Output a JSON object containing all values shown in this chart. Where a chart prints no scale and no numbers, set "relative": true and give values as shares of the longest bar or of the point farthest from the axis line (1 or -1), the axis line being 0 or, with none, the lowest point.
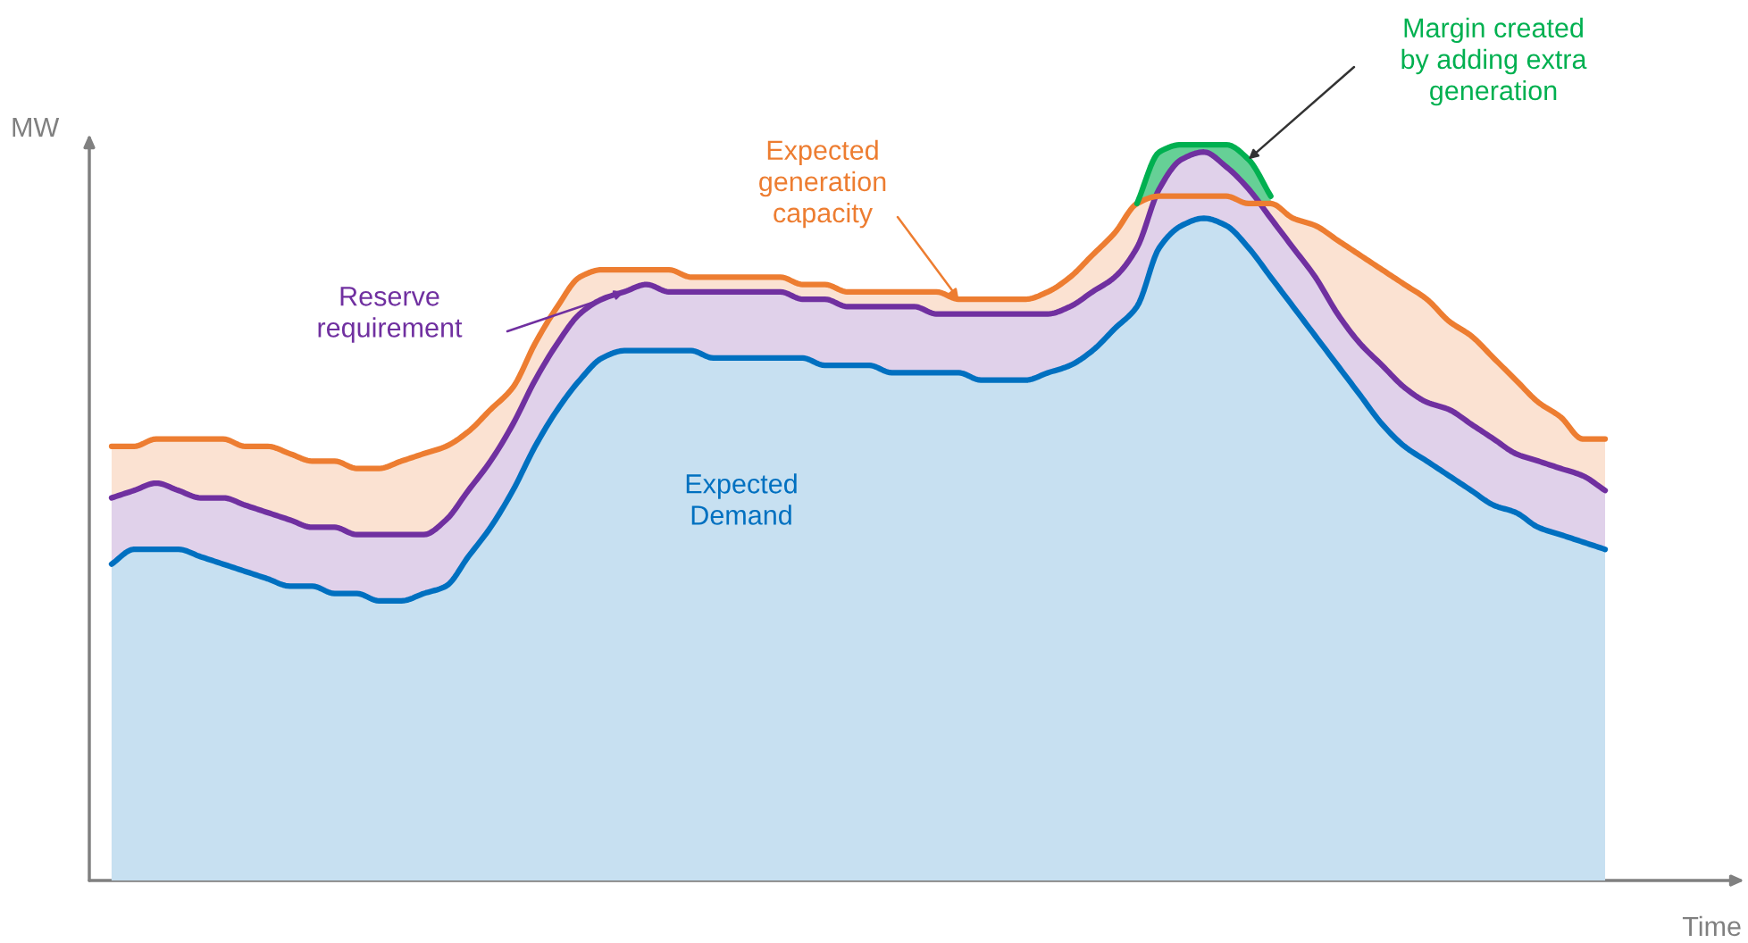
{
  "chart_data": {
    "type": "area",
    "relative": true,
    "xlabel": "Time",
    "ylabel": "MW",
    "categories": [
      null,
      null,
      null,
      null,
      null,
      null,
      null,
      null,
      null,
      null,
      null,
      null,
      null,
      null,
      null,
      null,
      null,
      null,
      null,
      null,
      null,
      null,
      null,
      null,
      null,
      null,
      null,
      null,
      null,
      null,
      null,
      null,
      null,
      null,
      null,
      null,
      null,
      null,
      null,
      null,
      null,
      null,
      null,
      null,
      null,
      null,
      null,
      null,
      null,
      null,
      null,
      null,
      null,
      null,
      null,
      null,
      null,
      null,
      null,
      null,
      null,
      null,
      null,
      null,
      null,
      null,
      null,
      null
    ],
    "series": [
      {
        "name": "Expected\nDemand",
        "color": "#0070c0",
        "values": [
          0.43,
          0.45,
          0.45,
          0.45,
          0.44,
          0.43,
          0.42,
          0.41,
          0.4,
          0.4,
          0.39,
          0.39,
          0.38,
          0.38,
          0.39,
          0.4,
          0.44,
          0.48,
          0.53,
          0.59,
          0.64,
          0.68,
          0.71,
          0.72,
          0.72,
          0.72,
          0.72,
          0.71,
          0.71,
          0.71,
          0.71,
          0.71,
          0.7,
          0.7,
          0.7,
          0.69,
          0.69,
          0.69,
          0.69,
          0.68,
          0.68,
          0.68,
          0.69,
          0.7,
          0.72,
          0.75,
          0.78,
          0.86,
          0.89,
          0.9,
          0.89,
          0.86,
          0.82,
          0.78,
          0.74,
          0.7,
          0.66,
          0.62,
          0.59,
          0.57,
          0.55,
          0.53,
          0.51,
          0.5,
          0.48,
          0.47,
          0.46,
          0.45
        ]
      },
      {
        "name": "Reserve\nrequirement",
        "color": "#7030a0",
        "values": [
          0.52,
          0.53,
          0.54,
          0.53,
          0.52,
          0.52,
          0.51,
          0.5,
          0.49,
          0.48,
          0.48,
          0.47,
          0.47,
          0.47,
          0.47,
          0.49,
          0.53,
          0.57,
          0.62,
          0.68,
          0.73,
          0.77,
          0.79,
          0.8,
          0.81,
          0.8,
          0.8,
          0.8,
          0.8,
          0.8,
          0.8,
          0.79,
          0.79,
          0.78,
          0.78,
          0.78,
          0.78,
          0.77,
          0.77,
          0.77,
          0.77,
          0.77,
          0.77,
          0.78,
          0.8,
          0.82,
          0.86,
          0.94,
          0.98,
          0.99,
          0.97,
          0.94,
          0.9,
          0.86,
          0.82,
          0.77,
          0.73,
          0.7,
          0.67,
          0.65,
          0.64,
          0.62,
          0.6,
          0.58,
          0.57,
          0.56,
          0.55,
          0.53
        ]
      },
      {
        "name": "Expected\ngeneration\ncapacity",
        "color": "#ed7d31",
        "values": [
          0.59,
          0.59,
          0.6,
          0.6,
          0.6,
          0.6,
          0.59,
          0.59,
          0.58,
          0.57,
          0.57,
          0.56,
          0.56,
          0.57,
          0.58,
          0.59,
          0.61,
          0.64,
          0.67,
          0.73,
          0.78,
          0.82,
          0.83,
          0.83,
          0.83,
          0.83,
          0.82,
          0.82,
          0.82,
          0.82,
          0.82,
          0.81,
          0.81,
          0.8,
          0.8,
          0.8,
          0.8,
          0.8,
          0.79,
          0.79,
          0.79,
          0.79,
          0.8,
          0.82,
          0.85,
          0.88,
          0.92,
          0.93,
          0.93,
          0.93,
          0.93,
          0.92,
          0.92,
          0.9,
          0.89,
          0.87,
          0.85,
          0.83,
          0.81,
          0.79,
          0.76,
          0.74,
          0.71,
          0.68,
          0.65,
          0.63,
          0.6,
          0.6
        ]
      },
      {
        "name": "Margin created\nby adding extra\ngeneration",
        "color": "#00b050",
        "values": [
          null,
          null,
          null,
          null,
          null,
          null,
          null,
          null,
          null,
          null,
          null,
          null,
          null,
          null,
          null,
          null,
          null,
          null,
          null,
          null,
          null,
          null,
          null,
          null,
          null,
          null,
          null,
          null,
          null,
          null,
          null,
          null,
          null,
          null,
          null,
          null,
          null,
          null,
          null,
          null,
          null,
          null,
          null,
          null,
          null,
          null,
          0.92,
          0.99,
          1.0,
          1.0,
          1.0,
          0.98,
          0.93,
          null,
          null,
          null,
          null,
          null,
          null,
          null,
          null,
          null,
          null,
          null,
          null,
          null,
          null,
          null
        ]
      }
    ]
  }
}
